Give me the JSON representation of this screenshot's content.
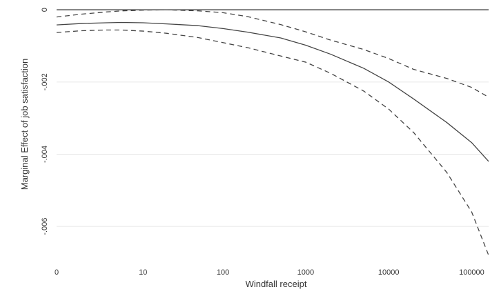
{
  "chart_data": {
    "type": "line",
    "title": "",
    "xlabel": "Windfall receipt",
    "ylabel": "Marginal Effect of job satisfaction",
    "x_scale": "log1p",
    "x_ticks": [
      0,
      10,
      100,
      1000,
      10000,
      100000
    ],
    "x_tick_labels": [
      "0",
      "10",
      "100",
      "1000",
      "10000",
      "100000"
    ],
    "y_ticks": [
      0,
      -0.002,
      -0.004,
      -0.006
    ],
    "y_tick_labels": [
      "0",
      "-.002",
      "-.004",
      "-.006"
    ],
    "xlim": [
      0,
      160000
    ],
    "ylim": [
      -0.0068,
      8e-05
    ],
    "grid": "horizontal",
    "legend": "none",
    "series": [
      {
        "style": "solid",
        "x": [
          0,
          1,
          3,
          5,
          10,
          20,
          50,
          100,
          200,
          500,
          1000,
          2000,
          5000,
          10000,
          20000,
          50000,
          100000,
          160000
        ],
        "y": [
          -0.00042,
          -0.00038,
          -0.00036,
          -0.00035,
          -0.00036,
          -0.00039,
          -0.00044,
          -0.00052,
          -0.00062,
          -0.00078,
          -0.00098,
          -0.00123,
          -0.00162,
          -0.002,
          -0.00247,
          -0.00312,
          -0.00368,
          -0.0042
        ]
      },
      {
        "style": "dashed",
        "x": [
          0,
          1,
          3,
          5,
          10,
          20,
          50,
          100,
          200,
          500,
          1000,
          2000,
          5000,
          10000,
          20000,
          50000,
          100000,
          160000
        ],
        "y": [
          -0.0002,
          -0.00012,
          -6e-05,
          -3e-05,
          -1e-05,
          0.0,
          -3e-05,
          -8e-05,
          -0.00019,
          -0.00041,
          -0.00061,
          -0.00084,
          -0.0011,
          -0.00135,
          -0.00165,
          -0.0019,
          -0.00215,
          -0.00242
        ]
      },
      {
        "style": "dashed",
        "x": [
          0,
          1,
          3,
          5,
          10,
          20,
          50,
          100,
          200,
          500,
          1000,
          2000,
          5000,
          10000,
          20000,
          50000,
          100000,
          160000
        ],
        "y": [
          -0.00063,
          -0.00058,
          -0.00056,
          -0.00056,
          -0.00059,
          -0.00065,
          -0.00077,
          -0.00091,
          -0.00105,
          -0.00128,
          -0.00145,
          -0.00176,
          -0.00225,
          -0.00275,
          -0.0034,
          -0.0045,
          -0.0056,
          -0.0068
        ]
      }
    ],
    "colors": {
      "line": "#444444",
      "zero_line": "#000000",
      "grid": "#e6e6e6",
      "axis_text": "#333333"
    }
  }
}
